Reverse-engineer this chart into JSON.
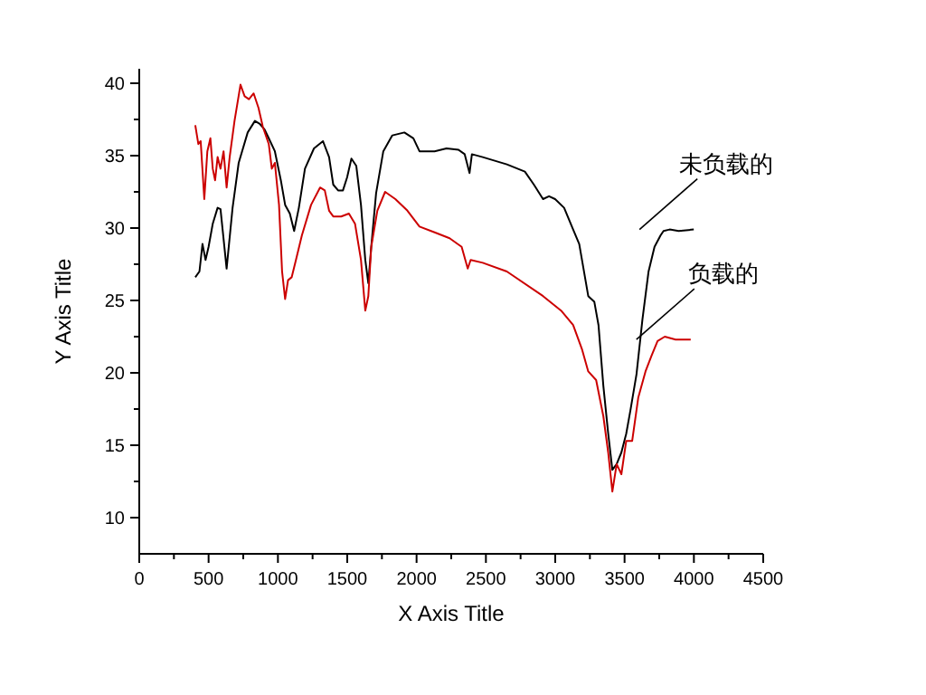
{
  "chart_data": {
    "type": "line",
    "xlabel": "X Axis Title",
    "ylabel": "Y Axis Title",
    "xlim": [
      0,
      4500
    ],
    "ylim": [
      7.5,
      41
    ],
    "xticks": [
      0,
      {
        "value": 250,
        "label": null
      },
      500,
      {
        "value": 750,
        "label": null
      },
      1000,
      {
        "value": 1250,
        "label": null
      },
      1500,
      {
        "value": 1750,
        "label": null
      },
      2000,
      {
        "value": 2250,
        "label": null
      },
      2500,
      {
        "value": 2750,
        "label": null
      },
      3000,
      {
        "value": 3250,
        "label": null
      },
      3500,
      {
        "value": 3750,
        "label": null
      },
      4000,
      {
        "value": 4250,
        "label": null
      },
      4500
    ],
    "yticks": [
      10,
      {
        "value": 12.5,
        "label": null
      },
      15,
      {
        "value": 17.5,
        "label": null
      },
      20,
      {
        "value": 22.5,
        "label": null
      },
      25,
      {
        "value": 27.5,
        "label": null
      },
      30,
      {
        "value": 32.5,
        "label": null
      },
      35,
      {
        "value": 37.5,
        "label": null
      },
      40
    ],
    "grid": false,
    "marker": "none",
    "line_style": "solid",
    "series": [
      {
        "name": "未负载的",
        "color": "#000000",
        "x": [
          404,
          434,
          456,
          478,
          500,
          530,
          565,
          586,
          630,
          673,
          717,
          782,
          834,
          869,
          904,
          934,
          978,
          1021,
          1052,
          1086,
          1117,
          1151,
          1195,
          1260,
          1325,
          1369,
          1399,
          1434,
          1469,
          1499,
          1530,
          1565,
          1599,
          1630,
          1652,
          1673,
          1708,
          1760,
          1825,
          1912,
          1977,
          2021,
          2130,
          2216,
          2303,
          2347,
          2382,
          2399,
          2477,
          2651,
          2781,
          2846,
          2912,
          2955,
          2999,
          3064,
          3129,
          3173,
          3238,
          3282,
          3312,
          3347,
          3382,
          3412,
          3443,
          3477,
          3512,
          3542,
          3586,
          3629,
          3673,
          3716,
          3760,
          3781,
          3825,
          3890,
          3999
        ],
        "values": [
          26.6,
          27.0,
          28.9,
          27.8,
          28.7,
          30.3,
          31.4,
          31.3,
          27.2,
          31.4,
          34.5,
          36.6,
          37.4,
          37.2,
          36.8,
          36.2,
          35.3,
          33.3,
          31.6,
          31.0,
          29.8,
          31.4,
          34.1,
          35.5,
          36.0,
          34.9,
          33.0,
          32.6,
          32.6,
          33.5,
          34.8,
          34.3,
          31.6,
          27.8,
          26.2,
          28.7,
          32.4,
          35.3,
          36.4,
          36.6,
          36.2,
          35.3,
          35.3,
          35.5,
          35.4,
          35.1,
          33.8,
          35.1,
          34.9,
          34.4,
          33.9,
          33.0,
          32.0,
          32.2,
          32.0,
          31.4,
          29.9,
          28.9,
          25.3,
          24.9,
          23.3,
          19.1,
          15.8,
          13.3,
          13.7,
          14.5,
          15.8,
          17.4,
          19.9,
          23.7,
          27.0,
          28.7,
          29.5,
          29.8,
          29.9,
          29.8,
          29.9
        ]
      },
      {
        "name": "负载的",
        "color": "#cc0000",
        "x": [
          404,
          426,
          443,
          469,
          491,
          513,
          530,
          547,
          565,
          586,
          608,
          630,
          652,
          687,
          730,
          760,
          791,
          825,
          860,
          891,
          934,
          956,
          978,
          1008,
          1030,
          1052,
          1073,
          1099,
          1130,
          1173,
          1239,
          1304,
          1338,
          1369,
          1399,
          1456,
          1512,
          1556,
          1599,
          1630,
          1652,
          1673,
          1717,
          1773,
          1847,
          1934,
          2021,
          2130,
          2238,
          2325,
          2369,
          2390,
          2477,
          2651,
          2912,
          3042,
          3129,
          3194,
          3238,
          3295,
          3347,
          3382,
          3412,
          3443,
          3477,
          3512,
          3555,
          3599,
          3651,
          3695,
          3738,
          3790,
          3868,
          3977
        ],
        "values": [
          37.1,
          35.8,
          36.0,
          32.0,
          35.3,
          36.2,
          34.1,
          33.3,
          34.9,
          34.1,
          35.3,
          32.8,
          34.9,
          37.4,
          39.9,
          39.1,
          38.9,
          39.3,
          38.3,
          37.0,
          35.8,
          34.1,
          34.5,
          31.6,
          27.0,
          25.1,
          26.4,
          26.6,
          27.8,
          29.5,
          31.6,
          32.8,
          32.6,
          31.2,
          30.8,
          30.8,
          31.0,
          30.3,
          27.8,
          24.3,
          25.3,
          28.7,
          31.2,
          32.5,
          32.0,
          31.2,
          30.1,
          29.7,
          29.3,
          28.7,
          27.2,
          27.8,
          27.6,
          27.0,
          25.3,
          24.3,
          23.3,
          21.6,
          20.1,
          19.5,
          17.0,
          14.5,
          11.8,
          13.7,
          13.0,
          15.3,
          15.3,
          18.3,
          20.1,
          21.2,
          22.2,
          22.5,
          22.3,
          22.3
        ]
      }
    ]
  }
}
